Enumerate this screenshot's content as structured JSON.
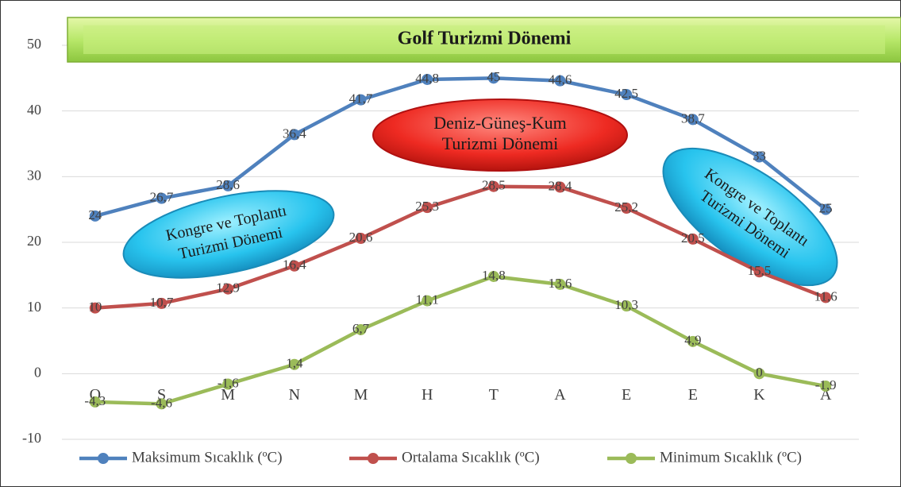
{
  "chart_data": {
    "type": "line",
    "categories": [
      "O",
      "S",
      "M",
      "N",
      "M",
      "H",
      "T",
      "A",
      "E",
      "E",
      "K",
      "A"
    ],
    "series": [
      {
        "name": "Maksimum Sıcaklık (ºC)",
        "color": "#4f81bd",
        "values": [
          24,
          26.7,
          28.6,
          36.4,
          41.7,
          44.8,
          45,
          44.6,
          42.5,
          38.7,
          33,
          25
        ],
        "value_labels": [
          "24",
          "26,7",
          "28,6",
          "36,4",
          "41,7",
          "44,8",
          "45",
          "44,6",
          "42,5",
          "38,7",
          "33",
          "25"
        ]
      },
      {
        "name": "Ortalama Sıcaklık (ºC)",
        "color": "#c0504d",
        "values": [
          10,
          10.7,
          12.9,
          16.4,
          20.6,
          25.3,
          28.5,
          28.4,
          25.2,
          20.5,
          15.5,
          11.6
        ],
        "value_labels": [
          "10",
          "10,7",
          "12,9",
          "16,4",
          "20,6",
          "25,3",
          "28,5",
          "28,4",
          "25,2",
          "20,5",
          "15,5",
          "11,6"
        ]
      },
      {
        "name": "Minimum Sıcaklık (ºC)",
        "color": "#9bbb59",
        "values": [
          -4.3,
          -4.6,
          -1.6,
          1.4,
          6.7,
          11.1,
          14.8,
          13.6,
          10.3,
          4.9,
          0,
          -1.9
        ],
        "value_labels": [
          "-4,3",
          "-4,6",
          "-1,6",
          "1,4",
          "6,7",
          "11,1",
          "14,8",
          "13,6",
          "10,3",
          "4,9",
          "0",
          "-1,9"
        ]
      }
    ],
    "ylim": [
      -10,
      50
    ],
    "yticks": [
      -10,
      0,
      10,
      20,
      30,
      40,
      50
    ],
    "grid": true,
    "legend": "bottom",
    "annotations": [
      [
        "Golf Turizmi Dönemi"
      ],
      [
        "Deniz-Güneş-Kum",
        "Turizmi Dönemi"
      ],
      [
        "Kongre ve Toplantı",
        "Turizmi Dönemi"
      ],
      [
        "Kongre ve Toplantı",
        "Turizmi Dönemi"
      ]
    ]
  }
}
